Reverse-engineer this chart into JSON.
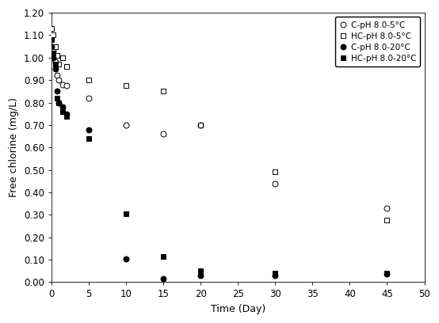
{
  "series": {
    "C_5C": {
      "label": "C-pH 8.0-5°C",
      "x": [
        0,
        0.25,
        0.5,
        0.75,
        1,
        1.5,
        2,
        5,
        10,
        15,
        20,
        30,
        45
      ],
      "y": [
        1.05,
        1.03,
        0.98,
        0.92,
        0.9,
        0.88,
        0.875,
        0.82,
        0.7,
        0.66,
        0.7,
        0.44,
        0.33
      ],
      "marker": "o",
      "facecolor": "white",
      "edgecolor": "black",
      "markersize": 5
    },
    "HC_5C": {
      "label": "HC-pH 8.0-5°C",
      "x": [
        0,
        0.25,
        0.5,
        0.75,
        1,
        1.5,
        2,
        5,
        10,
        15,
        20,
        30,
        45
      ],
      "y": [
        1.13,
        1.1,
        1.05,
        1.01,
        0.97,
        1.0,
        0.96,
        0.9,
        0.875,
        0.85,
        0.7,
        0.49,
        0.275
      ],
      "marker": "s",
      "facecolor": "white",
      "edgecolor": "black",
      "markersize": 5
    },
    "C_20C": {
      "label": "C-pH 8.0-20°C",
      "x": [
        0,
        0.25,
        0.5,
        0.75,
        1,
        1.5,
        2,
        5,
        10,
        15,
        20,
        30,
        45
      ],
      "y": [
        1.05,
        1.0,
        0.95,
        0.85,
        0.8,
        0.78,
        0.75,
        0.68,
        0.105,
        0.015,
        0.03,
        0.03,
        0.035
      ],
      "marker": "o",
      "facecolor": "black",
      "edgecolor": "black",
      "markersize": 5
    },
    "HC_20C": {
      "label": "HC-pH 8.0-20°C",
      "x": [
        0,
        0.25,
        0.5,
        0.75,
        1,
        1.5,
        2,
        5,
        10,
        15,
        20,
        30,
        45
      ],
      "y": [
        1.08,
        1.02,
        0.97,
        0.82,
        0.8,
        0.76,
        0.74,
        0.64,
        0.305,
        0.115,
        0.05,
        0.04,
        0.04
      ],
      "marker": "s",
      "facecolor": "black",
      "edgecolor": "black",
      "markersize": 5
    }
  },
  "xlabel": "Time (Day)",
  "ylabel": "Free chlorine (mg/L)",
  "xlim": [
    0,
    50
  ],
  "ylim": [
    0,
    1.2
  ],
  "xticks": [
    0,
    5,
    10,
    15,
    20,
    25,
    30,
    35,
    40,
    45,
    50
  ],
  "yticks": [
    0.0,
    0.1,
    0.2,
    0.3,
    0.4,
    0.5,
    0.6,
    0.7,
    0.8,
    0.9,
    1.0,
    1.1,
    1.2
  ],
  "background_color": "#ffffff"
}
